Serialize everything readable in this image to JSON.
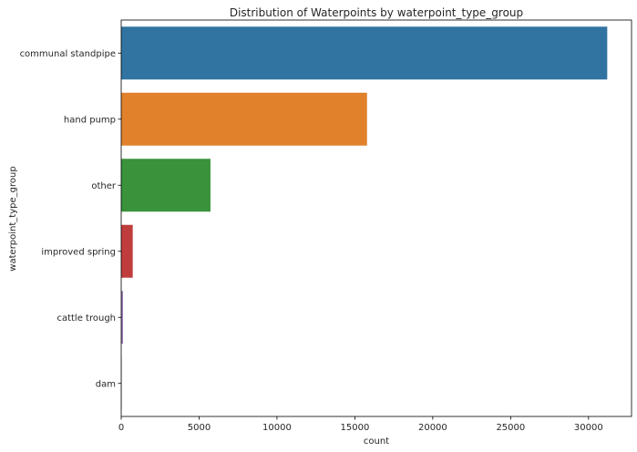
{
  "chart_data": {
    "type": "bar",
    "orientation": "horizontal",
    "title": "Distribution of Waterpoints by waterpoint_type_group",
    "xlabel": "count",
    "ylabel": "waterpoint_type_group",
    "categories": [
      "communal standpipe",
      "hand pump",
      "other",
      "improved spring",
      "cattle trough",
      "dam"
    ],
    "values": [
      31200,
      15780,
      5730,
      740,
      110,
      8
    ],
    "colors": [
      "#3274a1",
      "#e1812c",
      "#3a923a",
      "#c03d3e",
      "#9372b2",
      "#845b53"
    ],
    "xlim": [
      0,
      32760
    ],
    "xticks": [
      0,
      5000,
      10000,
      15000,
      20000,
      25000,
      30000
    ],
    "grid": false,
    "legend": "none"
  }
}
